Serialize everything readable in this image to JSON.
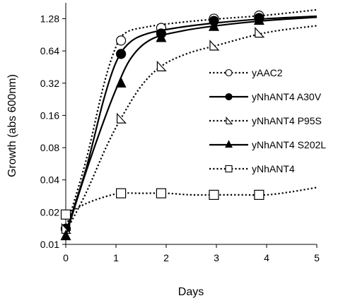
{
  "chart_data": {
    "type": "line",
    "title": "",
    "xlabel": "Days",
    "ylabel": "Growth (abs 600nm)",
    "xlim": [
      0,
      5
    ],
    "ylim": [
      0.01,
      1.8
    ],
    "y_scale": "log2",
    "x_ticks": [
      0,
      1,
      2,
      3,
      4,
      5
    ],
    "y_ticks": [
      0.01,
      0.02,
      0.04,
      0.08,
      0.16,
      0.32,
      0.64,
      1.28
    ],
    "y_tick_labels": [
      "0.01",
      "0.02",
      "0.04",
      "0.08",
      "0.16",
      "0.32",
      "0.64",
      "1.28"
    ],
    "grid": false,
    "legend_position": "right",
    "series": [
      {
        "name": "yAAC2",
        "marker": "circle-open",
        "line": "dotted",
        "x": [
          0,
          1.1,
          1.9,
          2.95,
          3.85
        ],
        "y": [
          0.014,
          0.8,
          1.05,
          1.28,
          1.37
        ],
        "fit": [
          [
            0,
            0.014
          ],
          [
            0.4,
            0.06
          ],
          [
            0.75,
            0.3
          ],
          [
            1.0,
            0.7
          ],
          [
            1.2,
            0.95
          ],
          [
            1.6,
            1.07
          ],
          [
            2.2,
            1.17
          ],
          [
            3.0,
            1.27
          ],
          [
            4.0,
            1.38
          ],
          [
            5.0,
            1.55
          ]
        ]
      },
      {
        "name": "yNhANT4 A30V",
        "marker": "circle-filled",
        "line": "solid",
        "x": [
          0,
          1.1,
          1.9,
          2.95,
          3.85
        ],
        "y": [
          0.014,
          0.6,
          0.93,
          1.22,
          1.3
        ],
        "fit": [
          [
            0,
            0.013
          ],
          [
            0.4,
            0.05
          ],
          [
            0.75,
            0.22
          ],
          [
            1.0,
            0.5
          ],
          [
            1.25,
            0.75
          ],
          [
            1.6,
            0.92
          ],
          [
            2.2,
            1.05
          ],
          [
            3.0,
            1.17
          ],
          [
            4.0,
            1.28
          ],
          [
            5.0,
            1.35
          ]
        ]
      },
      {
        "name": "yNhANT4 P95S",
        "marker": "triangle-open",
        "line": "dotted",
        "x": [
          0,
          1.1,
          1.9,
          2.95,
          3.85
        ],
        "y": [
          0.014,
          0.15,
          0.46,
          0.72,
          0.95
        ],
        "fit": [
          [
            0,
            0.013
          ],
          [
            0.4,
            0.03
          ],
          [
            0.8,
            0.08
          ],
          [
            1.1,
            0.15
          ],
          [
            1.5,
            0.3
          ],
          [
            1.9,
            0.46
          ],
          [
            2.4,
            0.6
          ],
          [
            3.0,
            0.72
          ],
          [
            4.0,
            0.95
          ],
          [
            5.0,
            1.1
          ]
        ]
      },
      {
        "name": "yNhANT4 S202L",
        "marker": "triangle-filled",
        "line": "solid",
        "x": [
          0,
          1.1,
          1.9,
          2.95,
          3.85
        ],
        "y": [
          0.012,
          0.32,
          0.85,
          1.08,
          1.23
        ],
        "fit": [
          [
            0,
            0.012
          ],
          [
            0.35,
            0.04
          ],
          [
            0.7,
            0.12
          ],
          [
            1.0,
            0.28
          ],
          [
            1.3,
            0.55
          ],
          [
            1.7,
            0.82
          ],
          [
            2.3,
            0.98
          ],
          [
            3.0,
            1.1
          ],
          [
            4.0,
            1.23
          ],
          [
            5.0,
            1.32
          ]
        ]
      },
      {
        "name": "yNhANT4",
        "marker": "square-open",
        "line": "dotted",
        "x": [
          0,
          1.1,
          1.9,
          2.95,
          3.85
        ],
        "y": [
          0.019,
          0.03,
          0.03,
          0.029,
          0.029
        ],
        "fit": [
          [
            0,
            0.019
          ],
          [
            0.4,
            0.024
          ],
          [
            0.8,
            0.028
          ],
          [
            1.1,
            0.03
          ],
          [
            1.5,
            0.03
          ],
          [
            2.0,
            0.03
          ],
          [
            2.5,
            0.029
          ],
          [
            3.0,
            0.029
          ],
          [
            3.5,
            0.029
          ],
          [
            4.0,
            0.029
          ],
          [
            4.5,
            0.031
          ],
          [
            5.0,
            0.034
          ]
        ]
      }
    ]
  }
}
